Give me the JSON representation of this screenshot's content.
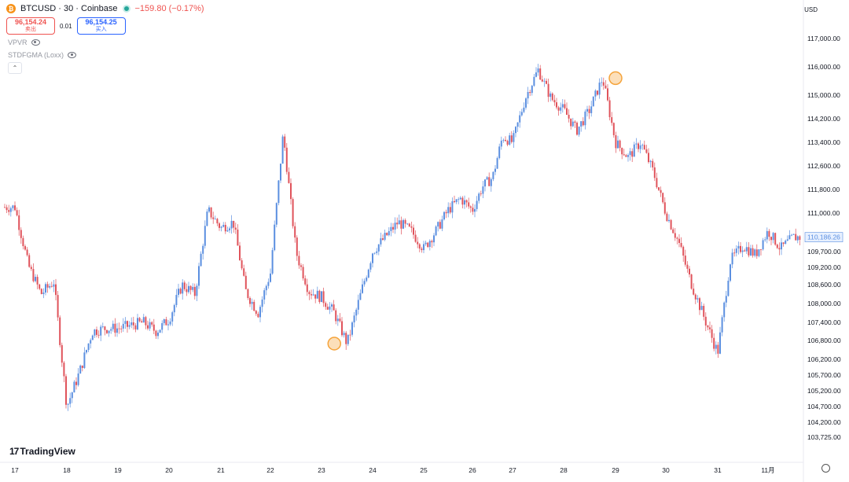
{
  "header": {
    "symbol": "BTCUSD · 30 · Coinbase",
    "coin_icon": "bitcoin-icon",
    "change": "−159.80 (−0.17%)",
    "sell_price": "96,154.24",
    "sell_label": "卖出",
    "spread": "0.01",
    "buy_price": "96,154.25",
    "buy_label": "买入"
  },
  "indicators": [
    "VPVR",
    "STDFGMA (Loxx)"
  ],
  "currency": "USD",
  "brand": "TradingView",
  "colors": {
    "up": "#5b8fe0",
    "down": "#e0535b",
    "marker": "#f5a33a",
    "price_tag": "#5b8fe0"
  },
  "chart_data": {
    "type": "line",
    "style": "candlestick",
    "title": "BTCUSD · 30 · Coinbase",
    "x_ticks": [
      "17",
      "18",
      "19",
      "20",
      "21",
      "22",
      "23",
      "24",
      "25",
      "26",
      "27",
      "28",
      "29",
      "30",
      "31",
      "11月"
    ],
    "y_ticks": [
      117000,
      116000,
      115000,
      114200,
      113400,
      112600,
      111800,
      111000,
      110186.26,
      109700,
      109200,
      108600,
      108000,
      107400,
      106800,
      106200,
      105700,
      105200,
      104700,
      104200,
      103725
    ],
    "y_tick_labels": [
      "117,000.00",
      "116,000.00",
      "115,000.00",
      "114,200.00",
      "113,400.00",
      "112,600.00",
      "111,800.00",
      "111,000.00",
      "110,186.26",
      "109,700.00",
      "109,200.00",
      "108,600.00",
      "108,000.00",
      "107,400.00",
      "106,800.00",
      "106,200.00",
      "105,700.00",
      "105,200.00",
      "104,700.00",
      "104,200.00",
      "103,725.00"
    ],
    "last_price": 110186.26,
    "x": [
      "10-17 00:00",
      "10-17 06:00",
      "10-17 12:00",
      "10-17 18:00",
      "10-18 00:00",
      "10-18 06:00",
      "10-18 12:00",
      "10-18 18:00",
      "10-19 00:00",
      "10-19 06:00",
      "10-19 12:00",
      "10-19 18:00",
      "10-20 00:00",
      "10-20 06:00",
      "10-20 12:00",
      "10-20 18:00",
      "10-21 00:00",
      "10-21 06:00",
      "10-21 12:00",
      "10-21 18:00",
      "10-22 00:00",
      "10-22 06:00",
      "10-22 12:00",
      "10-22 18:00",
      "10-23 00:00",
      "10-23 06:00",
      "10-23 12:00",
      "10-23 18:00",
      "10-24 00:00",
      "10-24 06:00",
      "10-24 12:00",
      "10-24 18:00",
      "10-25 00:00",
      "10-25 06:00",
      "10-25 12:00",
      "10-25 18:00",
      "10-26 00:00",
      "10-26 06:00",
      "10-26 12:00",
      "10-26 18:00",
      "10-27 00:00",
      "10-27 06:00",
      "10-27 12:00",
      "10-27 18:00",
      "10-28 00:00",
      "10-28 06:00",
      "10-28 12:00",
      "10-28 18:00",
      "10-29 00:00",
      "10-29 06:00",
      "10-29 12:00",
      "10-29 18:00",
      "10-30 00:00",
      "10-30 06:00",
      "10-30 12:00",
      "10-30 18:00",
      "10-31 00:00",
      "10-31 06:00",
      "10-31 12:00",
      "10-31 18:00",
      "11-01 00:00",
      "11-01 06:00",
      "11-01 12:00"
    ],
    "y": [
      111200,
      109300,
      108300,
      108700,
      104700,
      105800,
      107100,
      107200,
      107200,
      107300,
      107400,
      107100,
      107500,
      108600,
      108300,
      111100,
      110500,
      110700,
      108400,
      107700,
      109000,
      113700,
      109700,
      108400,
      108200,
      107700,
      106700,
      108200,
      109700,
      110200,
      110700,
      110400,
      109800,
      110400,
      111100,
      111500,
      111100,
      111900,
      112200,
      113600,
      113400,
      114900,
      115900,
      114900,
      114500,
      113800,
      114500,
      115600,
      113400,
      112900,
      113400,
      112400,
      111000,
      110000,
      108600,
      107500,
      106400,
      109400,
      109900,
      109600,
      110400,
      109800,
      110186.26
    ],
    "markers": [
      {
        "x": "10-23 06:00",
        "y": 106700
      },
      {
        "x": "10-29 00:00",
        "y": 115600
      }
    ]
  }
}
